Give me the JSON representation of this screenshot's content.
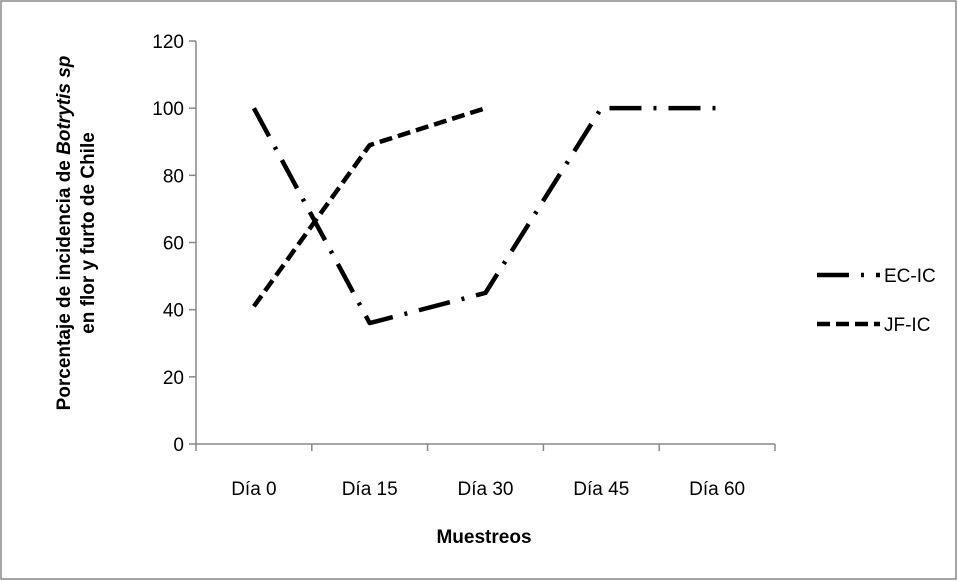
{
  "chart_data": {
    "type": "line",
    "title": "",
    "categories": [
      "Día 0",
      "Día 15",
      "Día 30",
      "Día 45",
      "Día 60"
    ],
    "series": [
      {
        "name": "EC-IC",
        "values": [
          100,
          36,
          45,
          100,
          100
        ],
        "dash": "dash-dot",
        "color": "#000000"
      },
      {
        "name": "JF-IC",
        "values": [
          41,
          89,
          100,
          null,
          null
        ],
        "dash": "dashed",
        "color": "#000000"
      }
    ],
    "xlabel": "Muestreos",
    "ylabel_parts": [
      {
        "text": "Porcentaje de incidencia de ",
        "italic": false
      },
      {
        "text": "Botrytis sp",
        "italic": true
      }
    ],
    "ylabel_line2": "en flor y furto de Chile",
    "ylim": [
      0,
      120
    ],
    "yticks": [
      0,
      20,
      40,
      60,
      80,
      100,
      120
    ],
    "grid": false,
    "legend_position": "right"
  }
}
